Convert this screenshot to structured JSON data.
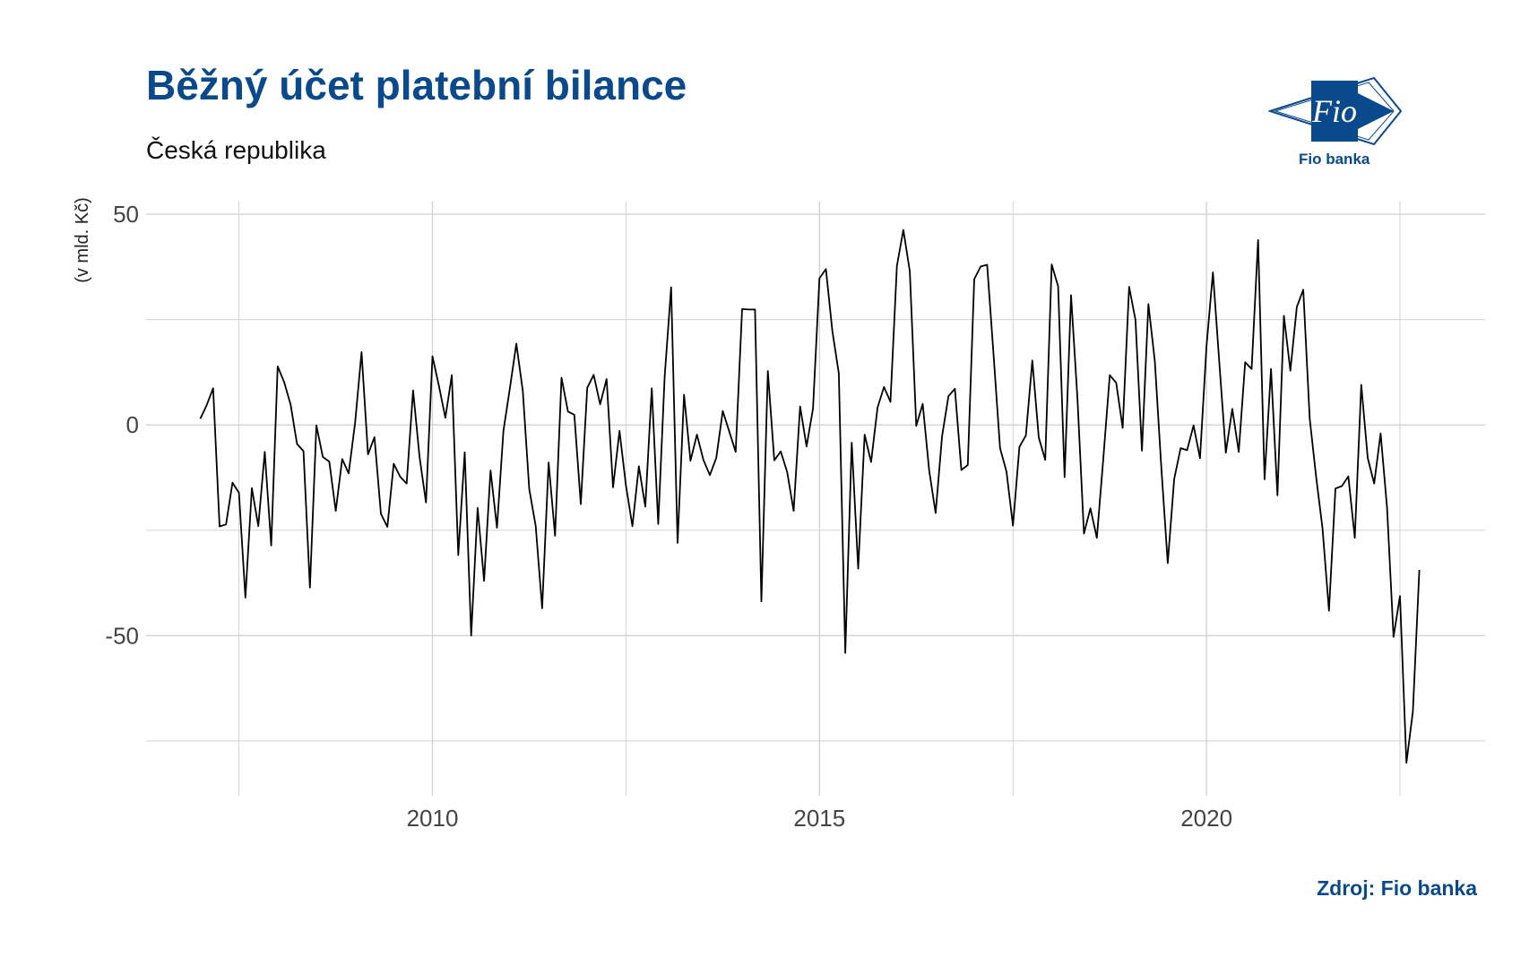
{
  "title": "Běžný účet platební bilance",
  "subtitle": "Česká republika",
  "source": "Zdroj: Fio banka",
  "logo": {
    "mark_text": "Fio",
    "caption": "Fio banka",
    "color": "#0a4a8c"
  },
  "colors": {
    "title": "#0a4a8c",
    "line": "#000000",
    "grid": "#d3d3d3"
  },
  "chart_data": {
    "type": "line",
    "title": "Běžný účet platební bilance",
    "subtitle": "Česká republika",
    "ylabel": "(v mld. Kč)",
    "xlabel": "",
    "x_ticks": [
      2010,
      2015,
      2020
    ],
    "y_ticks": [
      50,
      0,
      -50
    ],
    "xlim": [
      2006.3,
      2023.6
    ],
    "ylim": [
      -88,
      53
    ],
    "grid": true,
    "legend": "none",
    "series": [
      {
        "x_start": 2007.0,
        "x_step_months": 1,
        "values": [
          1.5,
          4.7,
          8.7,
          -24.1,
          -23.6,
          -13.7,
          -16.1,
          -41,
          -15,
          -24,
          -6.4,
          -28.6,
          13.9,
          10.2,
          4.9,
          -4.5,
          -6.2,
          -38.6,
          -0.1,
          -7.6,
          -8.7,
          -20.4,
          -8.1,
          -11.5,
          0.5,
          17.3,
          -7,
          -2.9,
          -21.1,
          -24.2,
          -9.2,
          -12.3,
          -13.9,
          8.2,
          -7.6,
          -18.4,
          16.3,
          9.3,
          1.7,
          11.8,
          -30.9,
          -6.5,
          -50,
          -19.7,
          -37,
          -10.8,
          -24.4,
          -1.4,
          8.7,
          19.3,
          8.1,
          -15.2,
          -24,
          -43.5,
          -8.9,
          -26.3,
          11.2,
          3.2,
          2.4,
          -18.8,
          8.8,
          11.9,
          4.9,
          10.9,
          -14.8,
          -1.4,
          -14.4,
          -24,
          -9.8,
          -19.4,
          8.7,
          -23.5,
          11.5,
          32.7,
          -28,
          7.2,
          -8.5,
          -2.3,
          -8.3,
          -11.9,
          -7.8,
          3.3,
          -1.5,
          -6.4,
          27.5,
          27.4,
          27.4,
          -41.9,
          12.8,
          -8.4,
          -6.3,
          -11.2,
          -20.4,
          4.4,
          -5.1,
          3.9,
          34.8,
          37,
          22.3,
          12.2,
          -54.1,
          -4.2,
          -34.1,
          -2.3,
          -8.8,
          4.1,
          9,
          5.5,
          37.7,
          46.3,
          36.5,
          -0.2,
          5,
          -10.8,
          -20.9,
          -2.7,
          6.8,
          8.6,
          -10.7,
          -9.5,
          34.6,
          37.6,
          38,
          16.5,
          -5.5,
          -11.1,
          -23.9,
          -5.2,
          -2.5,
          15.3,
          -3,
          -8.3,
          38.1,
          32.9,
          -12.4,
          30.8,
          6.1,
          -25.8,
          -19.8,
          -26.8,
          -8,
          11.8,
          10,
          -0.7,
          32.8,
          24.9,
          -6.1,
          28.7,
          15.1,
          -10,
          -32.8,
          -12.8,
          -5.5,
          -6,
          -0.1,
          -7.9,
          18.6,
          36.2,
          14.6,
          -6.6,
          3.8,
          -6.4,
          14.9,
          13.3,
          43.9,
          -12.9,
          13.3,
          -16.7,
          25.9,
          12.9,
          28,
          32.1,
          1.5,
          -12.4,
          -24.6,
          -44.1,
          -15.1,
          -14.5,
          -12.2,
          -26.8,
          9.5,
          -7.8,
          -13.9,
          -2,
          -19.7,
          -50.3,
          -40.6,
          -80.2,
          -68,
          -34.4
        ]
      }
    ]
  }
}
